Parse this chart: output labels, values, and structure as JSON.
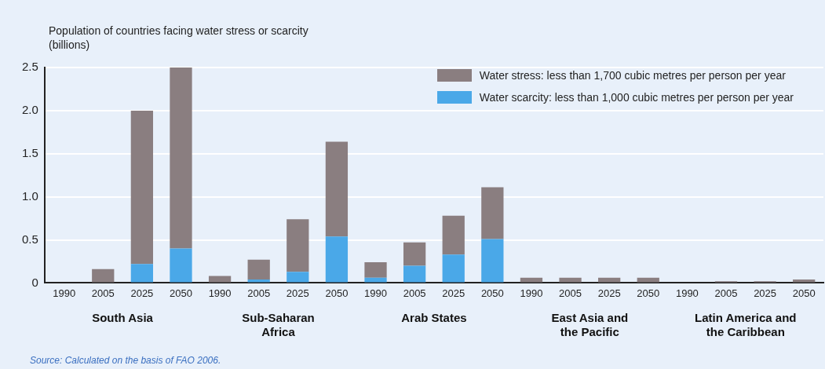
{
  "chart_data": {
    "type": "bar",
    "stacked": true,
    "ylabel": "Population of countries facing water stress or scarcity\n(billions)",
    "categories": [
      "1990",
      "2005",
      "2025",
      "2050",
      "1990",
      "2005",
      "2025",
      "2050",
      "1990",
      "2005",
      "2025",
      "2050",
      "1990",
      "2005",
      "2025",
      "2050",
      "1990",
      "2005",
      "2025",
      "2050"
    ],
    "series": [
      {
        "name": "Water scarcity: less than 1,000 cubic metres per person per year",
        "color": "#4aa8e8",
        "values": [
          0,
          0,
          0.22,
          0.4,
          0,
          0.04,
          0.13,
          0.54,
          0.06,
          0.2,
          0.33,
          0.51,
          0,
          0,
          0,
          0,
          0,
          0,
          0,
          0
        ]
      },
      {
        "name": "Water stress: less than 1,700 cubic metres per person per year",
        "color": "#8a7e80",
        "values": [
          0,
          0.16,
          1.78,
          2.1,
          0.08,
          0.23,
          0.61,
          1.1,
          0.18,
          0.27,
          0.45,
          0.6,
          0.06,
          0.06,
          0.06,
          0.06,
          0,
          0.02,
          0.02,
          0.04
        ]
      }
    ],
    "ylim": [
      0,
      2.5
    ],
    "yticks": [
      0,
      0.5,
      {
        "value": 1,
        "label": "1.0"
      },
      1.5,
      {
        "value": 2,
        "label": "2.0"
      },
      2.5
    ],
    "grid": "y",
    "legend": "top right",
    "annotations": [
      "South Asia",
      "Sub-Saharan\nAfrica",
      "Arab States",
      "East Asia and\nthe Pacific",
      "Latin America and\nthe Caribbean",
      "Source: Calculated on the basis of FAO 2006."
    ]
  }
}
